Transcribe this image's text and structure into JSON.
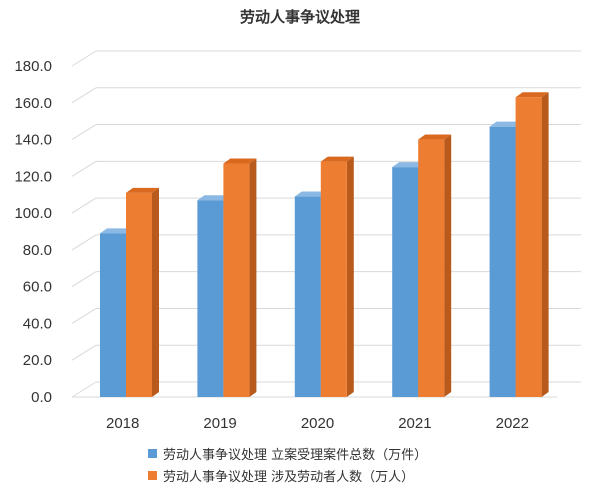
{
  "chart_data": {
    "type": "bar",
    "title": "劳动人事争议处理",
    "categories": [
      "2018",
      "2019",
      "2020",
      "2021",
      "2022"
    ],
    "series": [
      {
        "name": "劳动人事争议处理 立案受理案件总数（万件）",
        "values": [
          89,
          107,
          109,
          125,
          147
        ],
        "color": "#5b9bd5",
        "side_color": "#3f7bb5",
        "top_color": "#8cb9e3"
      },
      {
        "name": "劳动人事争议处理 涉及劳动者人数（万人）",
        "values": [
          111,
          127,
          128,
          140,
          163
        ],
        "color": "#ed7d31",
        "side_color": "#b85a1c",
        "top_color": "#d9691f"
      }
    ],
    "ylim": [
      0,
      180
    ],
    "yticks": [
      "0.0",
      "20.0",
      "40.0",
      "60.0",
      "80.0",
      "100.0",
      "120.0",
      "140.0",
      "160.0",
      "180.0"
    ],
    "xlabel": "",
    "ylabel": "",
    "grid": true,
    "legend_position": "bottom",
    "style": "3d-clustered-column"
  }
}
